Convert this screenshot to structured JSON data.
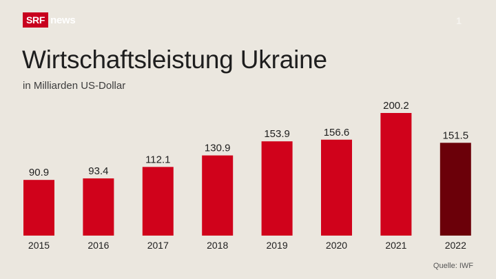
{
  "brand": {
    "srf": "SRF",
    "news": "news",
    "channel_bug": "1"
  },
  "colors": {
    "bar": "#d0021b",
    "highlight": "#6b0009",
    "brand_red": "#c8001e",
    "background": "#ebe7df"
  },
  "chart_data": {
    "type": "bar",
    "title": "Wirtschaftsleistung Ukraine",
    "subtitle": "in Milliarden US-Dollar",
    "categories": [
      "2015",
      "2016",
      "2017",
      "2018",
      "2019",
      "2020",
      "2021",
      "2022"
    ],
    "values": [
      90.9,
      93.4,
      112.1,
      130.9,
      153.9,
      156.6,
      200.2,
      151.5
    ],
    "labels": [
      "90.9",
      "93.4",
      "112.1",
      "130.9",
      "153.9",
      "156.6",
      "200.2",
      "151.5"
    ],
    "highlight_index": 7,
    "ylim": [
      0,
      200.2
    ],
    "grid": false,
    "source": "Quelle: IWF"
  }
}
